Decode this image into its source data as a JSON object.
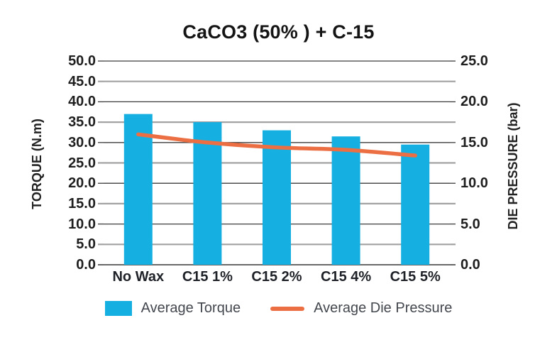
{
  "chart_data": {
    "type": "bar",
    "subtype": "combo-bar-line-dual-axis",
    "title": "CaCO3 (50% ) + C-15",
    "categories": [
      "No Wax",
      "C15 1%",
      "C15 2%",
      "C15 4%",
      "C15 5%"
    ],
    "series": [
      {
        "name": "Average Torque",
        "type": "bar",
        "axis": "left",
        "color": "#15b0e1",
        "values": [
          37.0,
          35.0,
          33.0,
          31.5,
          29.5
        ]
      },
      {
        "name": "Average Die Pressure",
        "type": "line",
        "axis": "right",
        "color": "#ec6f44",
        "values": [
          16.0,
          15.0,
          14.4,
          14.1,
          13.4
        ]
      }
    ],
    "left_axis": {
      "label": "TORQUE (N.m)",
      "min": 0,
      "max": 50,
      "step": 5,
      "tick_labels": [
        "50.0",
        "45.0",
        "40.0",
        "35.0",
        "30.0",
        "25.0",
        "20.0",
        "15.0",
        "10.0",
        "5.0",
        "0.0"
      ]
    },
    "right_axis": {
      "label": "DIE PRESSURE (bar)",
      "min": 0,
      "max": 25,
      "step": 5,
      "tick_labels": [
        "25.0",
        "20.0",
        "15.0",
        "10.0",
        "5.0",
        "0.0"
      ]
    },
    "grid": true,
    "legend_position": "bottom",
    "colors": {
      "bar": "#15b0e1",
      "line": "#ec6f44",
      "grid_minor": "#a2a2a2",
      "grid_major": "#3b3b3b",
      "axis_line": "#555555",
      "text": "#1e1e1e"
    }
  }
}
